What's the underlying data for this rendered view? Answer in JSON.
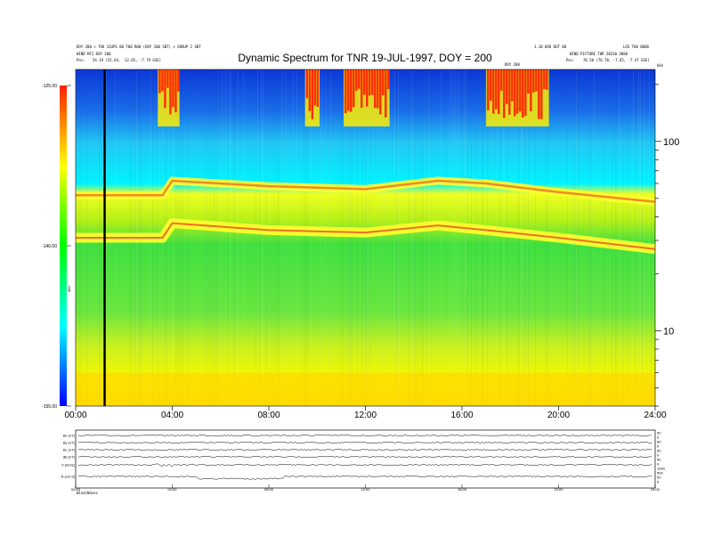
{
  "header": {
    "top_left_1": "DOY 200 > TOO 12UPS 00 T00 R00 (DOY 200 SBT) > GROUP 2 SBT",
    "top_left_2": "WIND MFI DOY 200",
    "position_label": "Pos:",
    "position_left": "54.19 (52.64, -12.65, -7.79 GSE)",
    "top_right_1": "1.10 WSD DUT 00",
    "top_right_2": "LOS T00 0000",
    "top_right_3": "WIND PICTURE THR 20230 3000",
    "position_right": "76.50 (76.70, -7.65, -7.47 GSE)",
    "marker_label": "DOY 200",
    "corner_label": "kHz"
  },
  "chart_data": {
    "type": "heatmap",
    "title": "Dynamic Spectrum for TNR 19-JUL-1997, DOY = 200",
    "xlabel": "",
    "ylabel": "",
    "x_range": [
      0,
      24
    ],
    "x_ticks": [
      "00:00",
      "04:00",
      "08:00",
      "12:00",
      "16:00",
      "20:00",
      "24:00"
    ],
    "y_right_scale": "log",
    "y_right_ticks": [
      "100",
      "10"
    ],
    "y_right_values_khz": [
      100,
      10
    ],
    "y_right_range_khz": [
      4,
      240
    ],
    "colorbar": {
      "ticks": [
        "-125.00",
        "-140.00",
        "-155.00"
      ],
      "range": [
        -155,
        -125
      ],
      "label": "dBV",
      "colors": [
        "#ff2000",
        "#ffff00",
        "#00ff00",
        "#00ffff",
        "#0000ff"
      ]
    },
    "vertical_marker_hour": 1.2,
    "features": {
      "noise_floor_band_khz": [
        5,
        6
      ],
      "upper_plasma_line_hours": [
        0,
        3.6,
        4,
        8,
        12,
        15,
        17,
        20,
        24
      ],
      "upper_plasma_line_khz": [
        52,
        52,
        62,
        58,
        56,
        62,
        60,
        54,
        48
      ],
      "lower_plasma_line_khz": [
        31,
        31,
        37,
        34,
        33,
        36,
        34,
        31,
        27
      ],
      "bursts_hours": [
        [
          3.4,
          4.3
        ],
        [
          9.5,
          10.1
        ],
        [
          11.1,
          13.0
        ],
        [
          17.0,
          19.6
        ]
      ]
    }
  },
  "bottom_panel": {
    "row_labels": [
      "Bx (nT)",
      "By (nT)",
      "Bz (nT)",
      "|B| (nT)",
      "V (km/s)",
      "N (cm-3)"
    ],
    "right_ticks": [
      "50",
      "0",
      "50",
      "0",
      "50",
      "0",
      "50",
      "0",
      "1000",
      "500",
      "50",
      "0"
    ],
    "x_ticks": [
      "00:00",
      "04:00",
      "08:00",
      "12:00",
      "16:00",
      "20:00",
      "24:00"
    ],
    "footer": "Wind/Waves"
  }
}
